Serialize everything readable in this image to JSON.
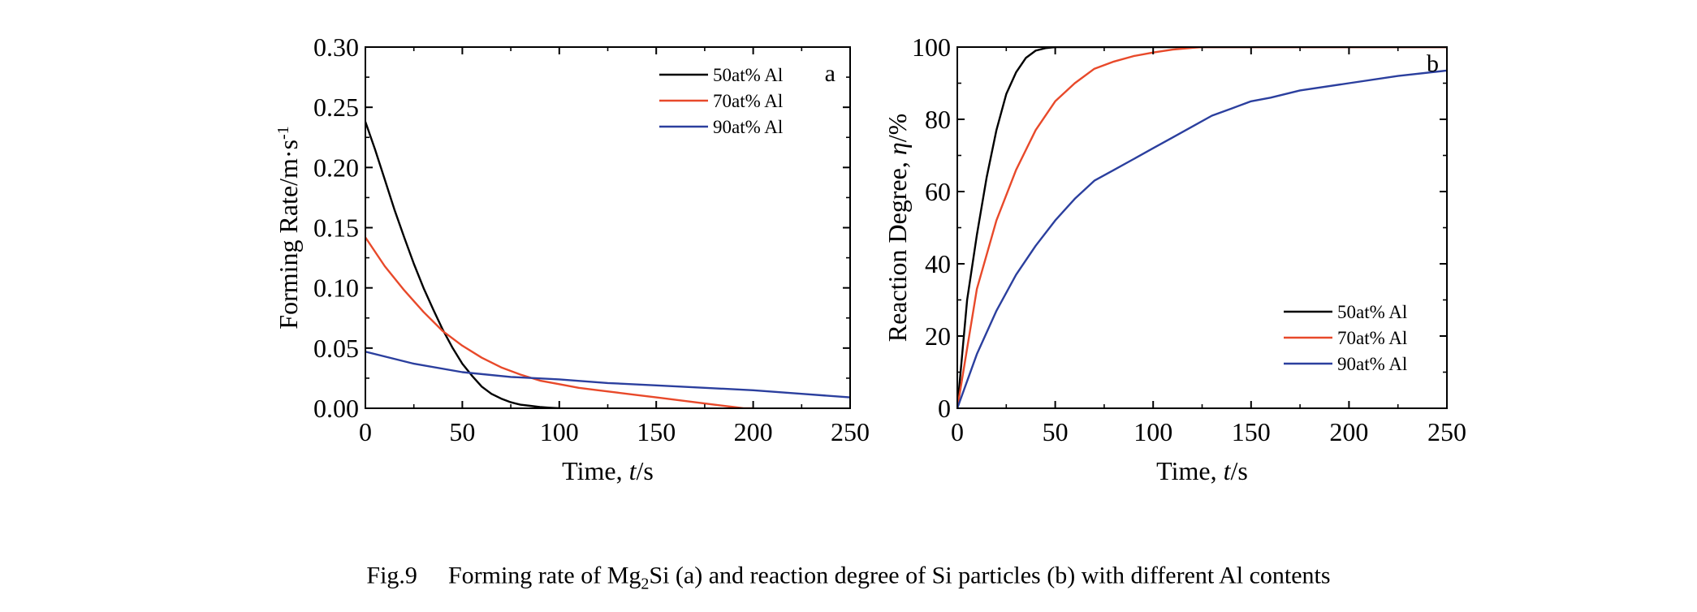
{
  "colors": {
    "s50": "#000000",
    "s70": "#e8492a",
    "s90": "#2b3f9e"
  },
  "chart_data": [
    {
      "type": "line",
      "panel": "a",
      "xlabel_prefix": "Time, ",
      "xlabel_var": "t",
      "xlabel_suffix": "/s",
      "ylabel": "Forming Rate/m·s",
      "ylabel_sup": "-1",
      "xlim": [
        0,
        250
      ],
      "ylim": [
        0,
        0.3
      ],
      "xticks": [
        "0",
        "50",
        "100",
        "150",
        "200",
        "250"
      ],
      "yticks": [
        "0.00",
        "0.05",
        "0.10",
        "0.15",
        "0.20",
        "0.25",
        "0.30"
      ],
      "grid": false,
      "legend_position": "top-right",
      "series": [
        {
          "name": "50at% Al",
          "x": [
            0,
            5,
            10,
            15,
            20,
            25,
            30,
            35,
            40,
            45,
            50,
            55,
            60,
            65,
            70,
            75,
            80,
            85,
            90,
            95,
            100
          ],
          "y": [
            0.238,
            0.215,
            0.19,
            0.165,
            0.142,
            0.12,
            0.1,
            0.082,
            0.065,
            0.05,
            0.037,
            0.027,
            0.018,
            0.012,
            0.008,
            0.005,
            0.003,
            0.002,
            0.001,
            0.0005,
            0.0
          ]
        },
        {
          "name": "70at% Al",
          "x": [
            0,
            10,
            20,
            30,
            40,
            50,
            60,
            70,
            80,
            90,
            100,
            110,
            120,
            130,
            140,
            150,
            160,
            170,
            180,
            190,
            195,
            200
          ],
          "y": [
            0.142,
            0.118,
            0.098,
            0.08,
            0.064,
            0.052,
            0.042,
            0.034,
            0.028,
            0.023,
            0.02,
            0.017,
            0.015,
            0.013,
            0.011,
            0.009,
            0.007,
            0.005,
            0.003,
            0.001,
            0.0,
            0.0
          ]
        },
        {
          "name": "90at% Al",
          "x": [
            0,
            25,
            50,
            75,
            100,
            125,
            150,
            175,
            200,
            225,
            250
          ],
          "y": [
            0.047,
            0.037,
            0.03,
            0.026,
            0.024,
            0.021,
            0.019,
            0.017,
            0.015,
            0.012,
            0.009
          ]
        }
      ]
    },
    {
      "type": "line",
      "panel": "b",
      "xlabel_prefix": "Time, ",
      "xlabel_var": "t",
      "xlabel_suffix": "/s",
      "ylabel": "Reaction Degree, ",
      "ylabel_var": "η",
      "ylabel_suffix": "/%",
      "xlim": [
        0,
        250
      ],
      "ylim": [
        0,
        100
      ],
      "xticks": [
        "0",
        "50",
        "100",
        "150",
        "200",
        "250"
      ],
      "yticks": [
        "0",
        "20",
        "40",
        "60",
        "80",
        "100"
      ],
      "grid": false,
      "legend_position": "bottom-right",
      "series": [
        {
          "name": "50at% Al",
          "x": [
            0,
            5,
            10,
            15,
            20,
            25,
            30,
            35,
            40,
            45,
            50,
            55,
            250
          ],
          "y": [
            0,
            30,
            48,
            64,
            77,
            87,
            93,
            97,
            99,
            99.7,
            100,
            100,
            100
          ]
        },
        {
          "name": "70at% Al",
          "x": [
            0,
            10,
            20,
            30,
            40,
            50,
            60,
            70,
            80,
            90,
            100,
            110,
            120,
            125,
            250
          ],
          "y": [
            0,
            33,
            52,
            66,
            77,
            85,
            90,
            94,
            96,
            97.5,
            98.5,
            99.3,
            99.8,
            100,
            100
          ]
        },
        {
          "name": "90at% Al",
          "x": [
            0,
            10,
            20,
            30,
            40,
            50,
            60,
            70,
            80,
            90,
            100,
            110,
            120,
            130,
            140,
            150,
            160,
            175,
            200,
            225,
            250
          ],
          "y": [
            0,
            15,
            27,
            37,
            45,
            52,
            58,
            63,
            66,
            69,
            72,
            75,
            78,
            81,
            83,
            85,
            86,
            88,
            90,
            92,
            93.5
          ]
        }
      ]
    }
  ],
  "caption": {
    "fig": "Fig.9",
    "part1": "Forming rate of Mg",
    "sub": "2",
    "part2": "Si (a) and reaction degree of Si particles (b) with different Al contents"
  }
}
